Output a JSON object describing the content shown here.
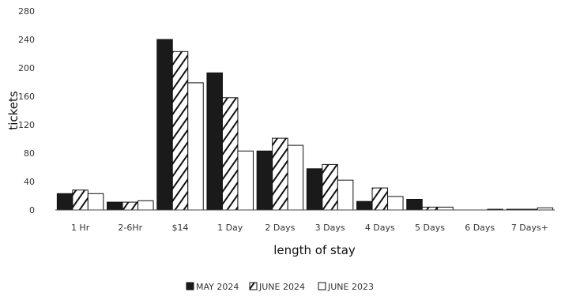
{
  "chart_data": {
    "type": "bar",
    "ylabel": "tickets",
    "xlabel": "length of stay",
    "ylim": [
      0,
      280
    ],
    "yticks": [
      0,
      40,
      80,
      120,
      160,
      200,
      240,
      280
    ],
    "categories": [
      "1 Hr",
      "2-6Hr",
      "$14",
      "1 Day",
      "2 Days",
      "3 Days",
      "4 Days",
      "5 Days",
      "6 Days",
      "7 Days+"
    ],
    "series": [
      {
        "name": "MAY 2024",
        "values": [
          23,
          11,
          240,
          193,
          83,
          58,
          12,
          15,
          0,
          1
        ],
        "pattern": "solid",
        "color": "#1a1a1a"
      },
      {
        "name": "JUNE 2024",
        "values": [
          28,
          11,
          223,
          158,
          101,
          64,
          31,
          4,
          0,
          1
        ],
        "pattern": "diagonal-hatch",
        "color": "#111111"
      },
      {
        "name": "JUNE 2023",
        "values": [
          23,
          13,
          179,
          83,
          91,
          42,
          19,
          4,
          1,
          3
        ],
        "pattern": "white",
        "color": "#ffffff"
      }
    ],
    "legend_position": "bottom",
    "grid": false
  }
}
